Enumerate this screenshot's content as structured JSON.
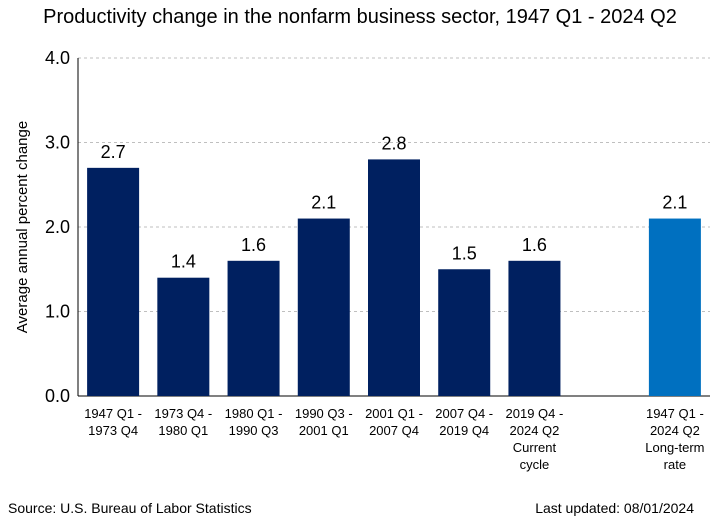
{
  "colors": {
    "primary_bar": "#002060",
    "highlight_bar": "#0070C0",
    "grid": "#bfbfbf"
  },
  "source": "Source: U.S. Bureau of Labor Statistics",
  "updated": "Last updated: 08/01/2024",
  "chart_data": {
    "type": "bar",
    "title": "Productivity change in the nonfarm business sector, 1947 Q1 - 2024 Q2",
    "ylabel": "Average annual percent change",
    "xlabel": "",
    "ylim": [
      0,
      4
    ],
    "yticks": [
      "0.0",
      "1.0",
      "2.0",
      "3.0",
      "4.0"
    ],
    "grid": true,
    "categories": [
      [
        "1947 Q1 -",
        "1973 Q4"
      ],
      [
        "1973 Q4 -",
        "1980 Q1"
      ],
      [
        "1980 Q1 -",
        "1990 Q3"
      ],
      [
        "1990 Q3 -",
        "2001 Q1"
      ],
      [
        "2001 Q1 -",
        "2007 Q4"
      ],
      [
        "2007 Q4 -",
        "2019 Q4"
      ],
      [
        "2019 Q4 -",
        "2024 Q2",
        "Current",
        "cycle"
      ],
      [
        "1947 Q1 -",
        "2024 Q2",
        "Long-term",
        "rate"
      ]
    ],
    "values": [
      2.7,
      1.4,
      1.6,
      2.1,
      2.8,
      1.5,
      1.6,
      2.1
    ],
    "labels": [
      "2.7",
      "1.4",
      "1.6",
      "2.1",
      "2.8",
      "1.5",
      "1.6",
      "2.1"
    ],
    "highlight_index": 7
  }
}
